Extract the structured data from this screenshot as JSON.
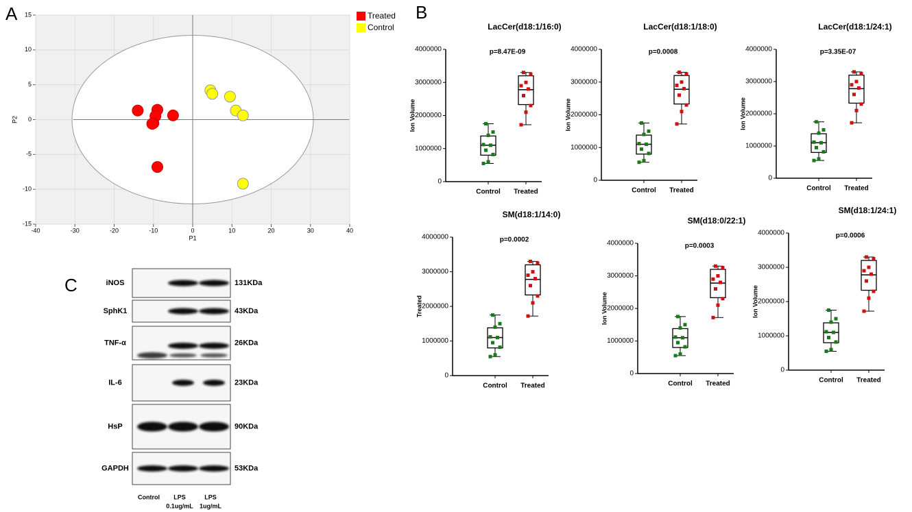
{
  "panel_labels": [
    "A",
    "B",
    "C"
  ],
  "chart_data": [
    {
      "type": "scatter",
      "xlabel": "P1",
      "ylabel": "P2",
      "xlim": [
        -40,
        40
      ],
      "xticks": [
        -40,
        -30,
        -20,
        -10,
        0,
        10,
        20,
        30,
        40
      ],
      "ylim": [
        -15,
        15
      ],
      "yticks": [
        -15,
        -10,
        -5,
        0,
        5,
        10,
        15
      ],
      "series": [
        {
          "name": "Treated",
          "color": "#ff0000",
          "x": [
            -14,
            -9,
            -9.5,
            -10,
            -10.3,
            -5,
            -9
          ],
          "y": [
            1.3,
            1.4,
            0.5,
            -0.5,
            -0.6,
            0.6,
            -6.8
          ]
        },
        {
          "name": "Control",
          "color": "#ffff00",
          "x": [
            4.5,
            5,
            9.5,
            11,
            12.8,
            12.8
          ],
          "y": [
            4.2,
            3.7,
            3.3,
            1.3,
            0.6,
            -9.2
          ]
        }
      ]
    },
    {
      "type": "box",
      "title": "LacCer(d18:1/16:0)",
      "annotation": "p=8.47E-09",
      "ylabel": "Ion Volume",
      "ylim": [
        0,
        4000000
      ],
      "yticks": [
        0,
        1000000,
        2000000,
        3000000,
        4000000
      ],
      "series": [
        {
          "name": "Control",
          "color": "#1a7a1a",
          "box": {
            "min": 550000,
            "q1": 800000,
            "median": 1100000,
            "q3": 1380000,
            "max": 1750000
          },
          "points": [
            550000,
            600000,
            820000,
            950000,
            1100000,
            1120000,
            1400000,
            1500000,
            1750000
          ]
        },
        {
          "name": "Treated",
          "color": "#d01010",
          "box": {
            "min": 1720000,
            "q1": 2330000,
            "median": 2780000,
            "q3": 3200000,
            "max": 3300000
          },
          "points": [
            1720000,
            2100000,
            2300000,
            2600000,
            2800000,
            2900000,
            3000000,
            3250000,
            3300000
          ]
        }
      ]
    },
    {
      "type": "box",
      "title": "LacCer(d18:1/18:0)",
      "annotation": "p=0.0008",
      "ylabel": "Ion Volume",
      "ylim": [
        0,
        4000000
      ],
      "yticks": [
        0,
        1000000,
        2000000,
        3000000,
        4000000
      ],
      "series": [
        {
          "name": "Control",
          "color": "#1a7a1a",
          "box": {
            "min": 550000,
            "q1": 800000,
            "median": 1100000,
            "q3": 1380000,
            "max": 1750000
          },
          "points": [
            550000,
            600000,
            820000,
            950000,
            1100000,
            1120000,
            1400000,
            1500000,
            1750000
          ]
        },
        {
          "name": "Treated",
          "color": "#d01010",
          "box": {
            "min": 1720000,
            "q1": 2330000,
            "median": 2780000,
            "q3": 3200000,
            "max": 3300000
          },
          "points": [
            1720000,
            2100000,
            2300000,
            2600000,
            2800000,
            2900000,
            3000000,
            3250000,
            3300000
          ]
        }
      ]
    },
    {
      "type": "box",
      "title": "LacCer(d18:1/24:1)",
      "annotation": "p=3.35E-07",
      "ylabel": "Ion Volume",
      "ylim": [
        0,
        4000000
      ],
      "yticks": [
        0,
        1000000,
        2000000,
        3000000,
        4000000
      ],
      "series": [
        {
          "name": "Control",
          "color": "#1a7a1a",
          "box": {
            "min": 550000,
            "q1": 800000,
            "median": 1100000,
            "q3": 1380000,
            "max": 1750000
          },
          "points": [
            550000,
            600000,
            820000,
            950000,
            1100000,
            1120000,
            1400000,
            1500000,
            1750000
          ]
        },
        {
          "name": "Treated",
          "color": "#d01010",
          "box": {
            "min": 1720000,
            "q1": 2330000,
            "median": 2780000,
            "q3": 3200000,
            "max": 3300000
          },
          "points": [
            1720000,
            2100000,
            2300000,
            2600000,
            2800000,
            2900000,
            3000000,
            3250000,
            3300000
          ]
        }
      ]
    },
    {
      "type": "box",
      "title": "SM(d18:1/14:0)",
      "annotation": "p=0.0002",
      "ylabel": "Treated",
      "ylim": [
        0,
        4000000
      ],
      "yticks": [
        0,
        1000000,
        2000000,
        3000000,
        4000000
      ],
      "series": [
        {
          "name": "Control",
          "color": "#1a7a1a",
          "box": {
            "min": 550000,
            "q1": 800000,
            "median": 1100000,
            "q3": 1380000,
            "max": 1750000
          },
          "points": [
            550000,
            600000,
            820000,
            950000,
            1100000,
            1120000,
            1400000,
            1500000,
            1750000
          ]
        },
        {
          "name": "Treated",
          "color": "#d01010",
          "box": {
            "min": 1720000,
            "q1": 2330000,
            "median": 2780000,
            "q3": 3200000,
            "max": 3300000
          },
          "points": [
            1720000,
            2100000,
            2300000,
            2600000,
            2800000,
            2900000,
            3000000,
            3250000,
            3300000
          ]
        }
      ]
    },
    {
      "type": "box",
      "title": "SM(d18:0/22:1)",
      "annotation": "p=0.0003",
      "ylabel": "Ion Volume",
      "ylim": [
        0,
        4000000
      ],
      "yticks": [
        0,
        1000000,
        2000000,
        3000000,
        4000000
      ],
      "series": [
        {
          "name": "Control",
          "color": "#1a7a1a",
          "box": {
            "min": 550000,
            "q1": 800000,
            "median": 1100000,
            "q3": 1380000,
            "max": 1750000
          },
          "points": [
            550000,
            600000,
            820000,
            950000,
            1100000,
            1120000,
            1400000,
            1500000,
            1750000
          ]
        },
        {
          "name": "Treated",
          "color": "#d01010",
          "box": {
            "min": 1720000,
            "q1": 2330000,
            "median": 2780000,
            "q3": 3200000,
            "max": 3300000
          },
          "points": [
            1720000,
            2100000,
            2300000,
            2600000,
            2800000,
            2900000,
            3000000,
            3250000,
            3300000
          ]
        }
      ]
    },
    {
      "type": "box",
      "title": "SM(d18:1/24:1)",
      "annotation": "p=0.0006",
      "ylabel": "Ion Volume",
      "ylim": [
        0,
        4000000
      ],
      "yticks": [
        0,
        1000000,
        2000000,
        3000000,
        4000000
      ],
      "series": [
        {
          "name": "Control",
          "color": "#1a7a1a",
          "box": {
            "min": 550000,
            "q1": 800000,
            "median": 1100000,
            "q3": 1380000,
            "max": 1750000
          },
          "points": [
            550000,
            600000,
            820000,
            950000,
            1100000,
            1120000,
            1400000,
            1500000,
            1750000
          ]
        },
        {
          "name": "Treated",
          "color": "#d01010",
          "box": {
            "min": 1720000,
            "q1": 2330000,
            "median": 2780000,
            "q3": 3200000,
            "max": 3300000
          },
          "points": [
            1720000,
            2100000,
            2300000,
            2600000,
            2800000,
            2900000,
            3000000,
            3250000,
            3300000
          ]
        }
      ]
    }
  ],
  "blot": {
    "rows": [
      {
        "protein": "iNOS",
        "size": "131KDa"
      },
      {
        "protein": "SphK1",
        "size": "43KDa"
      },
      {
        "protein": "TNF-α",
        "size": "26KDa"
      },
      {
        "protein": "IL-6",
        "size": "23KDa"
      },
      {
        "protein": "HsP",
        "size": "90KDa"
      },
      {
        "protein": "GAPDH",
        "size": "53KDa"
      }
    ],
    "lanes": [
      [
        "Control"
      ],
      [
        "LPS",
        "0.1ug/mL"
      ],
      [
        "LPS",
        "1ug/mL"
      ]
    ]
  }
}
